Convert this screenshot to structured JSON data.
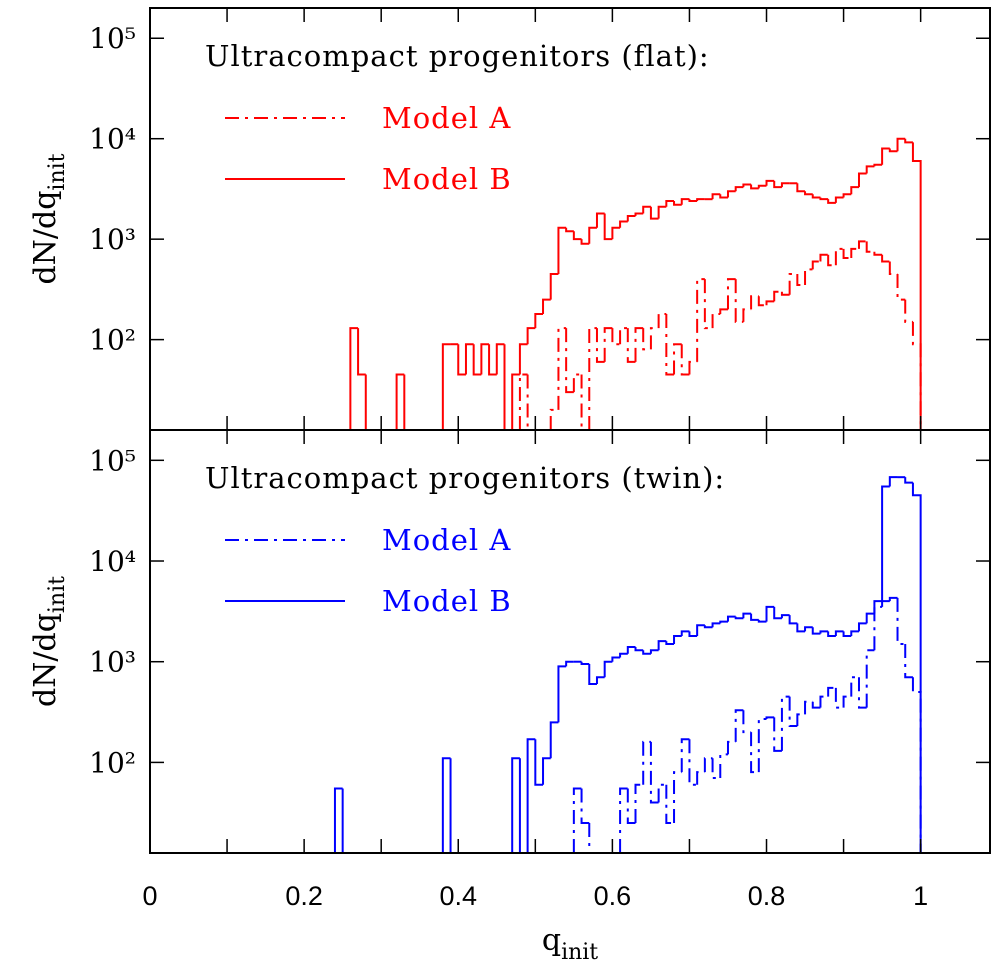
{
  "chart_data": [
    {
      "type": "histogram",
      "title": "Ultracompact progenitors (flat):",
      "log_y": true,
      "ylabel": "dN/dq",
      "ylabel_sub": "init",
      "bins": [
        0.24,
        0.25,
        0.26,
        0.27,
        0.28,
        0.29,
        0.3,
        0.31,
        0.32,
        0.33,
        0.34,
        0.35,
        0.36,
        0.37,
        0.38,
        0.39,
        0.4,
        0.41,
        0.42,
        0.43,
        0.44,
        0.45,
        0.46,
        0.47,
        0.48,
        0.49,
        0.5,
        0.51,
        0.52,
        0.53,
        0.54,
        0.55,
        0.56,
        0.57,
        0.58,
        0.59,
        0.6,
        0.61,
        0.62,
        0.63,
        0.64,
        0.65,
        0.66,
        0.67,
        0.68,
        0.69,
        0.7,
        0.71,
        0.72,
        0.73,
        0.74,
        0.75,
        0.76,
        0.77,
        0.78,
        0.79,
        0.8,
        0.81,
        0.82,
        0.83,
        0.84,
        0.85,
        0.86,
        0.87,
        0.88,
        0.89,
        0.9,
        0.91,
        0.92,
        0.93,
        0.94,
        0.95,
        0.96,
        0.97,
        0.98,
        0.99,
        1.0
      ],
      "series": [
        {
          "name": "Model A",
          "color": "#ff0000",
          "style": "dashdot",
          "values": [
            0,
            0,
            0,
            0,
            0,
            0,
            0,
            0,
            0,
            0,
            0,
            0,
            0,
            0,
            0,
            0,
            0,
            0,
            0,
            0,
            0,
            0,
            0,
            0,
            45,
            0,
            0,
            0,
            20,
            130,
            30,
            45,
            0,
            130,
            60,
            130,
            90,
            130,
            60,
            130,
            80,
            130,
            180,
            45,
            90,
            45,
            60,
            400,
            130,
            180,
            200,
            400,
            150,
            200,
            270,
            220,
            240,
            300,
            280,
            450,
            350,
            500,
            600,
            700,
            550,
            800,
            650,
            800,
            950,
            750,
            700,
            600,
            450,
            250,
            150,
            90
          ]
        },
        {
          "name": "Model B",
          "color": "#ff0000",
          "style": "solid",
          "values": [
            0,
            0,
            130,
            45,
            0,
            0,
            0,
            0,
            45,
            0,
            0,
            0,
            0,
            0,
            90,
            90,
            45,
            90,
            45,
            90,
            45,
            90,
            0,
            45,
            90,
            130,
            180,
            250,
            450,
            1300,
            1200,
            1000,
            900,
            1300,
            1800,
            1000,
            1300,
            1500,
            1700,
            1800,
            2100,
            1600,
            2100,
            2400,
            2200,
            2500,
            2400,
            2500,
            2500,
            2800,
            2600,
            3000,
            3300,
            3500,
            3200,
            3400,
            3800,
            3300,
            3600,
            3600,
            3000,
            2800,
            2600,
            2500,
            2300,
            2600,
            2800,
            3300,
            4500,
            5300,
            5500,
            8000,
            7500,
            10000,
            9200,
            6000
          ]
        }
      ],
      "xlim": [
        0,
        1.09
      ],
      "xticks": [
        0,
        0.2,
        0.4,
        0.6,
        0.8,
        1
      ],
      "xminorticks": [
        0.1,
        0.3,
        0.5,
        0.7,
        0.9
      ],
      "ylim": [
        12.6,
        200000
      ],
      "yticks": [
        {
          "value": 100,
          "label": "10²"
        },
        {
          "value": 1000,
          "label": "10³"
        },
        {
          "value": 10000,
          "label": "10⁴"
        },
        {
          "value": 100000,
          "label": "10⁵"
        }
      ]
    },
    {
      "type": "histogram",
      "title": "Ultracompact progenitors (twin):",
      "log_y": true,
      "ylabel": "dN/dq",
      "ylabel_sub": "init",
      "xlabel": "q",
      "xlabel_sub": "init",
      "bins": [
        0.24,
        0.25,
        0.26,
        0.27,
        0.28,
        0.29,
        0.3,
        0.31,
        0.32,
        0.33,
        0.34,
        0.35,
        0.36,
        0.37,
        0.38,
        0.39,
        0.4,
        0.41,
        0.42,
        0.43,
        0.44,
        0.45,
        0.46,
        0.47,
        0.48,
        0.49,
        0.5,
        0.51,
        0.52,
        0.53,
        0.54,
        0.55,
        0.56,
        0.57,
        0.58,
        0.59,
        0.6,
        0.61,
        0.62,
        0.63,
        0.64,
        0.65,
        0.66,
        0.67,
        0.68,
        0.69,
        0.7,
        0.71,
        0.72,
        0.73,
        0.74,
        0.75,
        0.76,
        0.77,
        0.78,
        0.79,
        0.8,
        0.81,
        0.82,
        0.83,
        0.84,
        0.85,
        0.86,
        0.87,
        0.88,
        0.89,
        0.9,
        0.91,
        0.92,
        0.93,
        0.94,
        0.95,
        0.96,
        0.97,
        0.98,
        0.99,
        1.0
      ],
      "series": [
        {
          "name": "Model A",
          "color": "#0000ff",
          "style": "dashdot",
          "values": [
            0,
            0,
            0,
            0,
            0,
            0,
            0,
            0,
            0,
            0,
            0,
            0,
            0,
            0,
            0,
            0,
            0,
            0,
            0,
            0,
            0,
            0,
            0,
            0,
            0,
            0,
            0,
            0,
            0,
            0,
            0,
            55,
            25,
            0,
            0,
            0,
            0,
            55,
            25,
            60,
            160,
            40,
            60,
            25,
            80,
            170,
            60,
            80,
            110,
            70,
            120,
            160,
            330,
            200,
            80,
            270,
            280,
            130,
            450,
            230,
            300,
            400,
            350,
            450,
            550,
            350,
            450,
            700,
            350,
            1300,
            3500,
            4000,
            4300,
            1500,
            700,
            500
          ]
        },
        {
          "name": "Model B",
          "color": "#0000ff",
          "style": "solid",
          "values": [
            55,
            0,
            0,
            0,
            0,
            0,
            0,
            0,
            0,
            0,
            0,
            0,
            0,
            0,
            110,
            0,
            0,
            0,
            0,
            0,
            0,
            0,
            0,
            110,
            0,
            170,
            60,
            110,
            250,
            900,
            1000,
            1000,
            950,
            600,
            700,
            1000,
            1100,
            1200,
            1400,
            1300,
            1200,
            1300,
            1600,
            1500,
            1800,
            2000,
            1800,
            2300,
            2200,
            2400,
            2500,
            2800,
            2700,
            3000,
            2600,
            2500,
            3500,
            2700,
            2900,
            2400,
            2000,
            2200,
            1900,
            2000,
            1800,
            2000,
            1800,
            2000,
            2400,
            3000,
            4000,
            55000,
            68000,
            68000,
            60000,
            45000
          ]
        }
      ],
      "xlim": [
        0,
        1.09
      ],
      "xticks": [
        0,
        0.2,
        0.4,
        0.6,
        0.8,
        1
      ],
      "xminorticks": [
        0.1,
        0.3,
        0.5,
        0.7,
        0.9
      ],
      "ylim": [
        12.6,
        200000
      ],
      "yticks": [
        {
          "value": 100,
          "label": "10²"
        },
        {
          "value": 1000,
          "label": "10³"
        },
        {
          "value": 10000,
          "label": "10⁴"
        },
        {
          "value": 100000,
          "label": "10⁵"
        }
      ]
    }
  ]
}
